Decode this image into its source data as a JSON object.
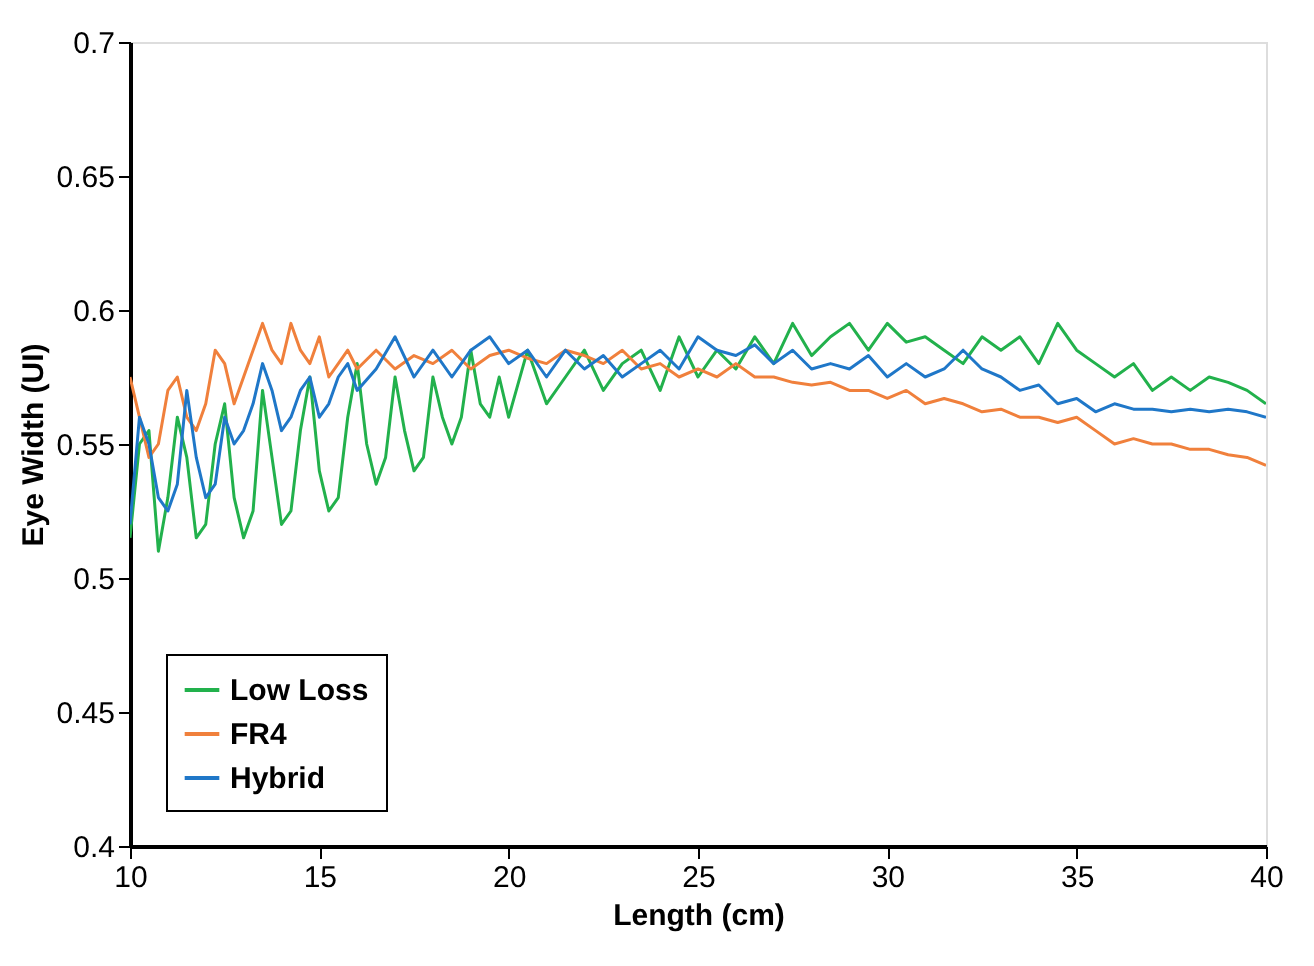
{
  "chart_data": {
    "type": "line",
    "xlabel": "Length (cm)",
    "ylabel": "Eye Width (UI)",
    "xlim": [
      10,
      40
    ],
    "xticks": [
      10,
      15,
      20,
      25,
      30,
      35,
      40
    ],
    "ylim": [
      0.4,
      0.7
    ],
    "yticks": [
      0.4,
      0.45,
      0.5,
      0.55,
      0.6,
      0.65,
      0.7
    ],
    "grid": false,
    "legend": "bottom left",
    "marker": "none",
    "line_style": "solid",
    "series": [
      {
        "name": "Low Loss",
        "color": "#22b14c",
        "x": [
          10,
          10.25,
          10.5,
          10.75,
          11,
          11.25,
          11.5,
          11.75,
          12,
          12.25,
          12.5,
          12.75,
          13,
          13.25,
          13.5,
          13.75,
          14,
          14.25,
          14.5,
          14.75,
          15,
          15.25,
          15.5,
          15.75,
          16,
          16.25,
          16.5,
          16.75,
          17,
          17.25,
          17.5,
          17.75,
          18,
          18.25,
          18.5,
          18.75,
          19,
          19.25,
          19.5,
          19.75,
          20,
          20.5,
          21,
          21.5,
          22,
          22.5,
          23,
          23.5,
          24,
          24.5,
          25,
          25.5,
          26,
          26.5,
          27,
          27.5,
          28,
          28.5,
          29,
          29.5,
          30,
          30.5,
          31,
          31.5,
          32,
          32.5,
          33,
          33.5,
          34,
          34.5,
          35,
          35.5,
          36,
          36.5,
          37,
          37.5,
          38,
          38.5,
          39,
          39.5,
          40
        ],
        "values": [
          0.515,
          0.55,
          0.555,
          0.51,
          0.53,
          0.56,
          0.545,
          0.515,
          0.52,
          0.55,
          0.565,
          0.53,
          0.515,
          0.525,
          0.57,
          0.545,
          0.52,
          0.525,
          0.555,
          0.575,
          0.54,
          0.525,
          0.53,
          0.56,
          0.58,
          0.55,
          0.535,
          0.545,
          0.575,
          0.555,
          0.54,
          0.545,
          0.575,
          0.56,
          0.55,
          0.56,
          0.585,
          0.565,
          0.56,
          0.575,
          0.56,
          0.585,
          0.565,
          0.575,
          0.585,
          0.57,
          0.58,
          0.585,
          0.57,
          0.59,
          0.575,
          0.585,
          0.578,
          0.59,
          0.58,
          0.595,
          0.583,
          0.59,
          0.595,
          0.585,
          0.595,
          0.588,
          0.59,
          0.585,
          0.58,
          0.59,
          0.585,
          0.59,
          0.58,
          0.595,
          0.585,
          0.58,
          0.575,
          0.58,
          0.57,
          0.575,
          0.57,
          0.575,
          0.573,
          0.57,
          0.565
        ]
      },
      {
        "name": "FR4",
        "color": "#f0803c",
        "x": [
          10,
          10.25,
          10.5,
          10.75,
          11,
          11.25,
          11.5,
          11.75,
          12,
          12.25,
          12.5,
          12.75,
          13,
          13.25,
          13.5,
          13.75,
          14,
          14.25,
          14.5,
          14.75,
          15,
          15.25,
          15.5,
          15.75,
          16,
          16.5,
          17,
          17.5,
          18,
          18.5,
          19,
          19.5,
          20,
          20.5,
          21,
          21.5,
          22,
          22.5,
          23,
          23.5,
          24,
          24.5,
          25,
          25.5,
          26,
          26.5,
          27,
          27.5,
          28,
          28.5,
          29,
          29.5,
          30,
          30.5,
          31,
          31.5,
          32,
          32.5,
          33,
          33.5,
          34,
          34.5,
          35,
          35.5,
          36,
          36.5,
          37,
          37.5,
          38,
          38.5,
          39,
          39.5,
          40
        ],
        "values": [
          0.575,
          0.56,
          0.545,
          0.55,
          0.57,
          0.575,
          0.56,
          0.555,
          0.565,
          0.585,
          0.58,
          0.565,
          0.575,
          0.585,
          0.595,
          0.585,
          0.58,
          0.595,
          0.585,
          0.58,
          0.59,
          0.575,
          0.58,
          0.585,
          0.578,
          0.585,
          0.578,
          0.583,
          0.58,
          0.585,
          0.578,
          0.583,
          0.585,
          0.582,
          0.58,
          0.585,
          0.583,
          0.58,
          0.585,
          0.578,
          0.58,
          0.575,
          0.578,
          0.575,
          0.58,
          0.575,
          0.575,
          0.573,
          0.572,
          0.573,
          0.57,
          0.57,
          0.567,
          0.57,
          0.565,
          0.567,
          0.565,
          0.562,
          0.563,
          0.56,
          0.56,
          0.558,
          0.56,
          0.555,
          0.55,
          0.552,
          0.55,
          0.55,
          0.548,
          0.548,
          0.546,
          0.545,
          0.542
        ]
      },
      {
        "name": "Hybrid",
        "color": "#1f77c8",
        "x": [
          10,
          10.25,
          10.5,
          10.75,
          11,
          11.25,
          11.5,
          11.75,
          12,
          12.25,
          12.5,
          12.75,
          13,
          13.25,
          13.5,
          13.75,
          14,
          14.25,
          14.5,
          14.75,
          15,
          15.25,
          15.5,
          15.75,
          16,
          16.5,
          17,
          17.5,
          18,
          18.5,
          19,
          19.5,
          20,
          20.5,
          21,
          21.5,
          22,
          22.5,
          23,
          23.5,
          24,
          24.5,
          25,
          25.5,
          26,
          26.5,
          27,
          27.5,
          28,
          28.5,
          29,
          29.5,
          30,
          30.5,
          31,
          31.5,
          32,
          32.5,
          33,
          33.5,
          34,
          34.5,
          35,
          35.5,
          36,
          36.5,
          37,
          37.5,
          38,
          38.5,
          39,
          39.5,
          40
        ],
        "values": [
          0.52,
          0.56,
          0.55,
          0.53,
          0.525,
          0.535,
          0.57,
          0.545,
          0.53,
          0.535,
          0.56,
          0.55,
          0.555,
          0.565,
          0.58,
          0.57,
          0.555,
          0.56,
          0.57,
          0.575,
          0.56,
          0.565,
          0.575,
          0.58,
          0.57,
          0.578,
          0.59,
          0.575,
          0.585,
          0.575,
          0.585,
          0.59,
          0.58,
          0.585,
          0.575,
          0.585,
          0.578,
          0.583,
          0.575,
          0.58,
          0.585,
          0.578,
          0.59,
          0.585,
          0.583,
          0.587,
          0.58,
          0.585,
          0.578,
          0.58,
          0.578,
          0.583,
          0.575,
          0.58,
          0.575,
          0.578,
          0.585,
          0.578,
          0.575,
          0.57,
          0.572,
          0.565,
          0.567,
          0.562,
          0.565,
          0.563,
          0.563,
          0.562,
          0.563,
          0.562,
          0.563,
          0.562,
          0.56
        ]
      }
    ]
  }
}
